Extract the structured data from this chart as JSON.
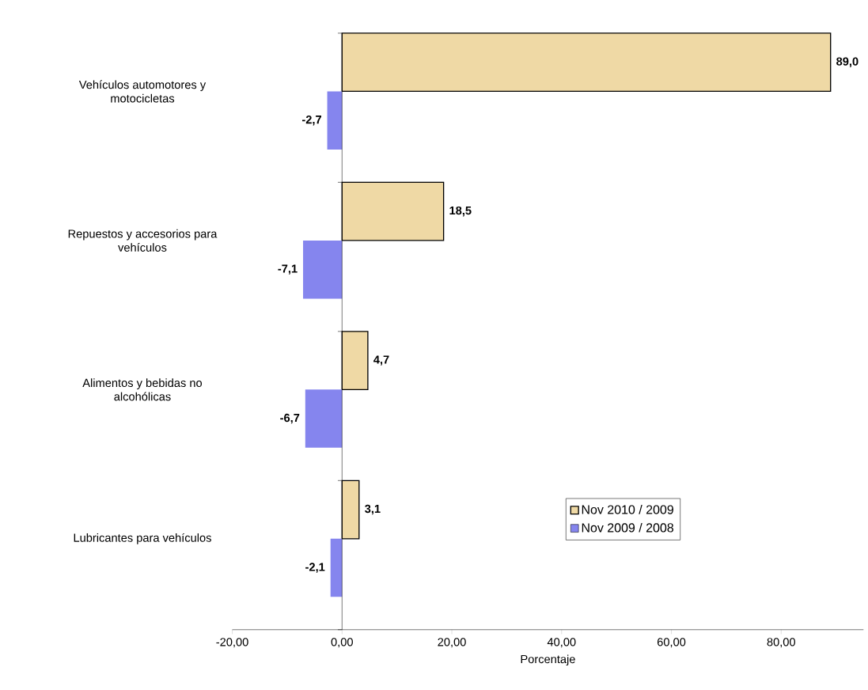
{
  "chart_data": {
    "type": "bar",
    "orientation": "horizontal",
    "xlabel": "Porcentaje",
    "categories": [
      "Vehículos automotores y motocicletas",
      "Repuestos y accesorios para vehículos",
      "Alimentos  y bebidas no alcohólicas",
      "Lubricantes para vehículos"
    ],
    "series": [
      {
        "name": "Nov 2010 / 2009",
        "color": "#efd9a5",
        "values": [
          89.0,
          18.5,
          4.7,
          3.1
        ],
        "value_labels": [
          "89,0",
          "18,5",
          "4,7",
          "3,1"
        ]
      },
      {
        "name": "Nov 2009 / 2008",
        "color": "#8585ee",
        "values": [
          -2.7,
          -7.1,
          -6.7,
          -2.1
        ],
        "value_labels": [
          "-2,7",
          "-7,1",
          "-6,7",
          "-2,1"
        ]
      }
    ],
    "xlim": [
      -20,
      95
    ],
    "xticks": [
      {
        "value": -20,
        "label": "-20,00"
      },
      {
        "value": 0,
        "label": "0,00"
      },
      {
        "value": 20,
        "label": "20,00"
      },
      {
        "value": 40,
        "label": "40,00"
      },
      {
        "value": 60,
        "label": "60,00"
      },
      {
        "value": 80,
        "label": "80,00"
      }
    ],
    "legend": "bottom right"
  }
}
